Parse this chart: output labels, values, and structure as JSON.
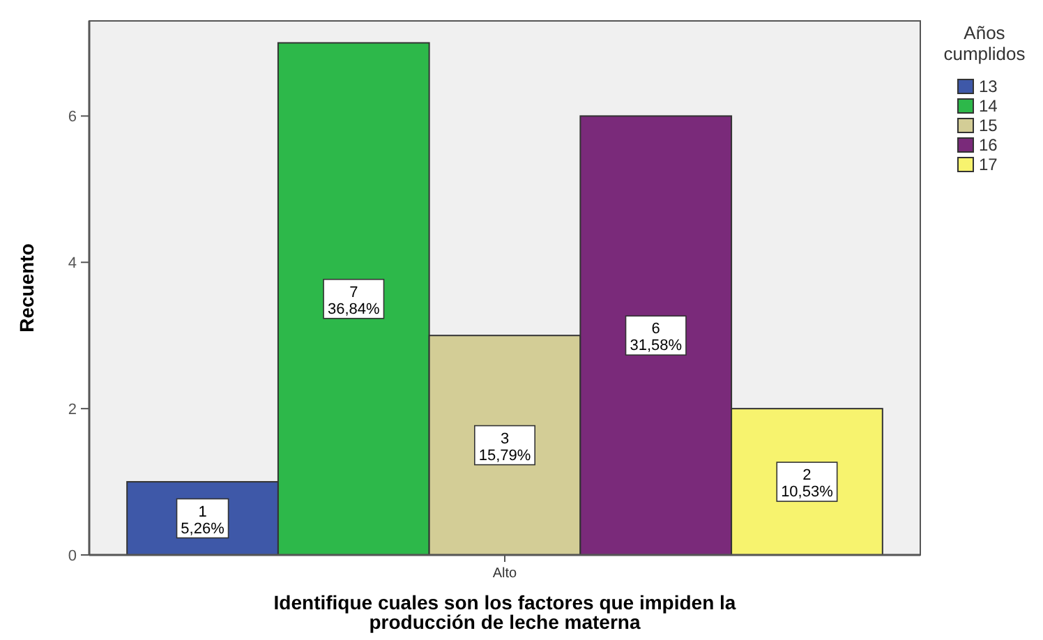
{
  "chart_data": {
    "type": "bar",
    "xlabel": "Identifique cuales son los factores que impiden la producción de leche materna",
    "ylabel": "Recuento",
    "legend_title": "Años cumplidos",
    "legend": "right",
    "categories": [
      "Alto"
    ],
    "ylim": [
      0,
      7.3
    ],
    "yticks": [
      0,
      2,
      4,
      6
    ],
    "grid": false,
    "series": [
      {
        "name": "13",
        "color": "#3e58a8",
        "values": [
          1
        ],
        "value_labels": [
          "1\n5,26%"
        ]
      },
      {
        "name": "14",
        "color": "#2db84a",
        "values": [
          7
        ],
        "value_labels": [
          "7\n36,84%"
        ]
      },
      {
        "name": "15",
        "color": "#d3cd96",
        "values": [
          3
        ],
        "value_labels": [
          "3\n15,79%"
        ]
      },
      {
        "name": "16",
        "color": "#7a2a7a",
        "values": [
          6
        ],
        "value_labels": [
          "6\n31,58%"
        ]
      },
      {
        "name": "17",
        "color": "#f7f36e",
        "values": [
          2
        ],
        "value_labels": [
          "2\n10,53%"
        ]
      }
    ]
  }
}
